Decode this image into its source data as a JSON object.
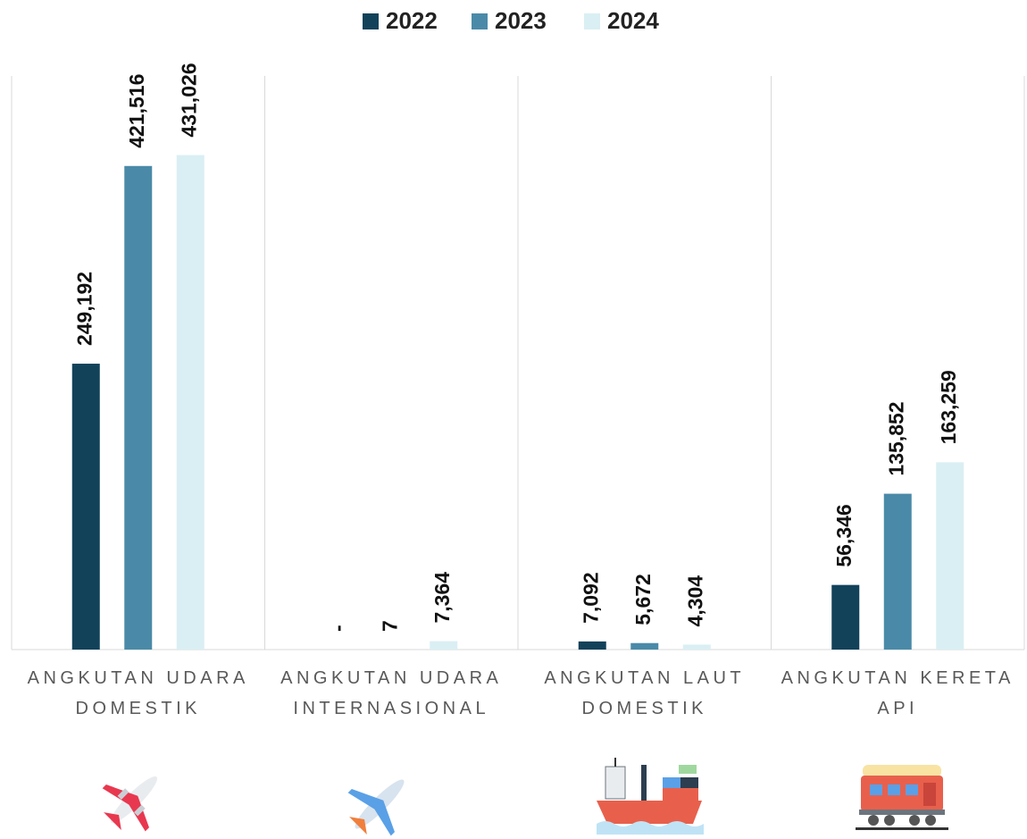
{
  "chart_data": {
    "type": "bar",
    "categories": [
      "ANGKUTAN UDARA DOMESTIK",
      "ANGKUTAN UDARA INTERNASIONAL",
      "ANGKUTAN LAUT DOMESTIK",
      "ANGKUTAN KERETA API"
    ],
    "series": [
      {
        "name": "2022",
        "color": "#12425a",
        "values": [
          249192,
          0,
          7092,
          56346
        ],
        "value_labels": [
          "249,192",
          "-",
          "7,092",
          "56,346"
        ]
      },
      {
        "name": "2023",
        "color": "#4a8aa8",
        "values": [
          421516,
          7,
          5672,
          135852
        ],
        "value_labels": [
          "421,516",
          "7",
          "5,672",
          "135,852"
        ]
      },
      {
        "name": "2024",
        "color": "#daeff3",
        "values": [
          431026,
          7364,
          4304,
          163259
        ],
        "value_labels": [
          "431,026",
          "7,364",
          "4,304",
          "163,259"
        ]
      }
    ],
    "ylim": [
      0,
      500000
    ],
    "legend": "top"
  }
}
